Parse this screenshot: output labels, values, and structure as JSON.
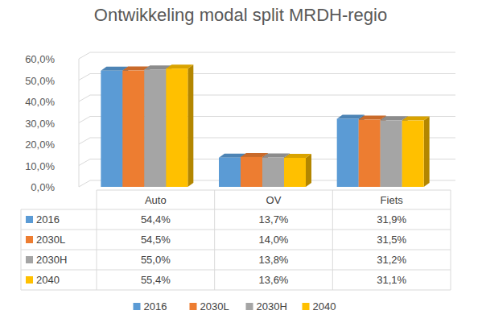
{
  "chart_data": {
    "type": "bar",
    "title": "Ontwikkeling modal split MRDH-regio",
    "categories": [
      "Auto",
      "OV",
      "Fiets"
    ],
    "series": [
      {
        "name": "2016",
        "color": "#5b9bd5",
        "values": [
          54.4,
          13.7,
          31.9
        ],
        "value_labels": [
          "54,4%",
          "13,7%",
          "31,9%"
        ]
      },
      {
        "name": "2030L",
        "color": "#ed7d31",
        "values": [
          54.5,
          14.0,
          31.5
        ],
        "value_labels": [
          "54,5%",
          "14,0%",
          "31,5%"
        ]
      },
      {
        "name": "2030H",
        "color": "#a5a5a5",
        "values": [
          55.0,
          13.8,
          31.2
        ],
        "value_labels": [
          "55,0%",
          "13,8%",
          "31,2%"
        ]
      },
      {
        "name": "2040",
        "color": "#ffc000",
        "values": [
          55.4,
          13.6,
          31.1
        ],
        "value_labels": [
          "55,4%",
          "13,6%",
          "31,1%"
        ]
      }
    ],
    "ylim": [
      0,
      60
    ],
    "yticks": [
      {
        "value": 0,
        "label": "0,0%"
      },
      {
        "value": 10,
        "label": "10,0%"
      },
      {
        "value": 20,
        "label": "20,0%"
      },
      {
        "value": 30,
        "label": "30,0%"
      },
      {
        "value": 40,
        "label": "40,0%"
      },
      {
        "value": 50,
        "label": "50,0%"
      },
      {
        "value": 60,
        "label": "60,0%"
      }
    ],
    "grid": true,
    "legend": "bottom",
    "data_labels": true
  }
}
